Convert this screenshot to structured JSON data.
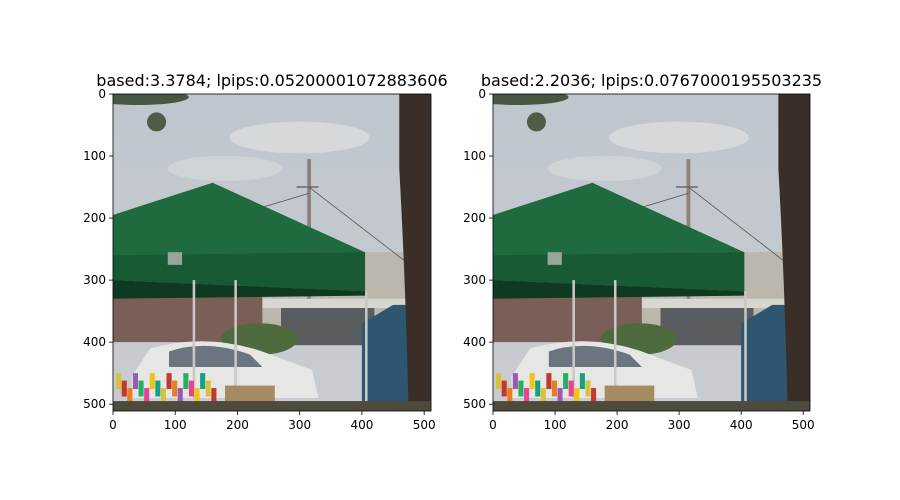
{
  "chart_data": [
    {
      "type": "image",
      "title": "based:3.3784; lpips:0.05200001072883606",
      "xlim": [
        0,
        511
      ],
      "ylim": [
        511,
        0
      ],
      "xticks": [
        0,
        100,
        200,
        300,
        400,
        500
      ],
      "yticks": [
        0,
        100,
        200,
        300,
        400,
        500
      ],
      "tick_labels": {
        "x": [
          "0",
          "100",
          "200",
          "300",
          "400",
          "500"
        ],
        "y": [
          "0",
          "100",
          "200",
          "300",
          "400",
          "500"
        ]
      },
      "image_content": "photo of a green canopy tent with market stall, white car, utility pole and tree",
      "colors": {
        "sky": "#c9ccd0",
        "tent": "#1f6b3f",
        "tree": "#3a2f28",
        "building": "#bcb7ad",
        "car": "#e6e6e4"
      }
    },
    {
      "type": "image",
      "title": "based:2.2036; lpips:0.0767000195503235",
      "xlim": [
        0,
        511
      ],
      "ylim": [
        511,
        0
      ],
      "xticks": [
        0,
        100,
        200,
        300,
        400,
        500
      ],
      "yticks": [
        0,
        100,
        200,
        300,
        400,
        500
      ],
      "tick_labels": {
        "x": [
          "0",
          "100",
          "200",
          "300",
          "400",
          "500"
        ],
        "y": [
          "0",
          "100",
          "200",
          "300",
          "400",
          "500"
        ]
      },
      "image_content": "photo of a green canopy tent with market stall, white car, utility pole and tree",
      "colors": {
        "sky": "#c9ccd0",
        "tent": "#1f6b3f",
        "tree": "#3a2f28",
        "building": "#bcb7ad",
        "car": "#e6e6e4"
      }
    }
  ]
}
